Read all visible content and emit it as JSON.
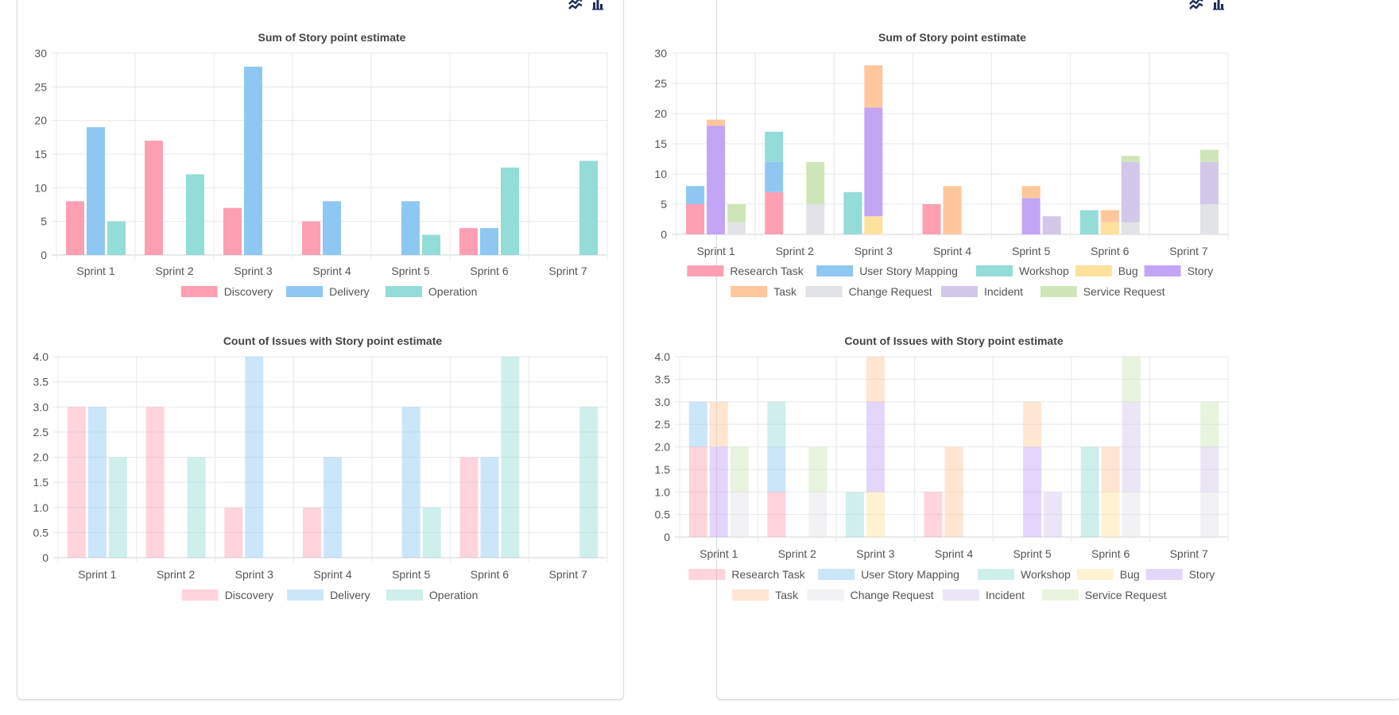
{
  "panels": [
    {
      "toolbar": {
        "icons": [
          "line-chart-icon",
          "bar-chart-icon"
        ]
      },
      "charts": [
        "left_sum",
        "left_count"
      ]
    },
    {
      "toolbar": {
        "icons": [
          "line-chart-icon",
          "bar-chart-icon"
        ]
      },
      "charts": [
        "right_sum",
        "right_count"
      ]
    }
  ],
  "colors": {
    "Discovery": "#ff9fb3",
    "Delivery": "#8ec8f2",
    "Operation": "#94dcd8",
    "Research Task": "#ff9fb3",
    "User Story Mapping": "#8ec8f2",
    "Workshop": "#94dcd8",
    "Bug": "#fde29b",
    "Story": "#c3a5f5",
    "Task": "#fec79b",
    "Change Request": "#e2e3e6",
    "Incident": "#d3c7ea",
    "Service Request": "#cfe6b8"
  },
  "chart_data": [
    {
      "id": "left_sum",
      "type": "bar",
      "stacked": false,
      "title": "Sum of Story point estimate",
      "categories": [
        "Sprint 1",
        "Sprint 2",
        "Sprint 3",
        "Sprint 4",
        "Sprint 5",
        "Sprint 6",
        "Sprint 7"
      ],
      "ylim": [
        0,
        30
      ],
      "yticks": [
        "0",
        "5",
        "10",
        "15",
        "20",
        "25",
        "30"
      ],
      "series": [
        {
          "name": "Discovery",
          "values": [
            8,
            17,
            7,
            5,
            0,
            4,
            0
          ]
        },
        {
          "name": "Delivery",
          "values": [
            19,
            0,
            28,
            8,
            8,
            4,
            0
          ]
        },
        {
          "name": "Operation",
          "values": [
            5,
            12,
            0,
            0,
            3,
            13,
            14
          ]
        }
      ],
      "legend": "bottom",
      "opacity": "strong"
    },
    {
      "id": "left_count",
      "type": "bar",
      "stacked": false,
      "title": "Count of Issues with Story point estimate",
      "categories": [
        "Sprint 1",
        "Sprint 2",
        "Sprint 3",
        "Sprint 4",
        "Sprint 5",
        "Sprint 6",
        "Sprint 7"
      ],
      "ylim": [
        0,
        4
      ],
      "yticks": [
        "0",
        "0.5",
        "1.0",
        "1.5",
        "2.0",
        "2.5",
        "3.0",
        "3.5",
        "4.0"
      ],
      "series": [
        {
          "name": "Discovery",
          "values": [
            3,
            3,
            1,
            1,
            0,
            2,
            0
          ]
        },
        {
          "name": "Delivery",
          "values": [
            3,
            0,
            4,
            2,
            3,
            2,
            0
          ]
        },
        {
          "name": "Operation",
          "values": [
            2,
            2,
            0,
            0,
            1,
            4,
            3
          ]
        }
      ],
      "legend": "bottom",
      "opacity": "light"
    },
    {
      "id": "right_sum",
      "type": "bar",
      "stacked": true,
      "title": "Sum of Story point estimate",
      "categories": [
        "Sprint 1",
        "Sprint 2",
        "Sprint 3",
        "Sprint 4",
        "Sprint 5",
        "Sprint 6",
        "Sprint 7"
      ],
      "ylim": [
        0,
        30
      ],
      "yticks": [
        "0",
        "5",
        "10",
        "15",
        "20",
        "25",
        "30"
      ],
      "series": [
        {
          "name": "Research Task",
          "values": [
            5,
            7,
            0,
            5,
            0,
            0,
            0
          ],
          "stack": "Discovery"
        },
        {
          "name": "User Story Mapping",
          "values": [
            3,
            5,
            0,
            0,
            0,
            0,
            0
          ],
          "stack": "Discovery"
        },
        {
          "name": "Workshop",
          "values": [
            0,
            5,
            7,
            0,
            0,
            4,
            0
          ],
          "stack": "Discovery"
        },
        {
          "name": "Bug",
          "values": [
            0,
            0,
            3,
            0,
            0,
            2,
            0
          ],
          "stack": "Delivery"
        },
        {
          "name": "Story",
          "values": [
            18,
            0,
            18,
            0,
            6,
            0,
            0
          ],
          "stack": "Delivery"
        },
        {
          "name": "Task",
          "values": [
            1,
            0,
            7,
            8,
            2,
            2,
            0
          ],
          "stack": "Delivery"
        },
        {
          "name": "Change Request",
          "values": [
            2,
            5,
            0,
            0,
            0,
            2,
            5
          ],
          "stack": "Operation"
        },
        {
          "name": "Incident",
          "values": [
            0,
            0,
            0,
            0,
            3,
            10,
            7
          ],
          "stack": "Operation"
        },
        {
          "name": "Service Request",
          "values": [
            3,
            7,
            0,
            0,
            0,
            1,
            2
          ],
          "stack": "Operation"
        }
      ],
      "legend": "bottom",
      "opacity": "strong"
    },
    {
      "id": "right_count",
      "type": "bar",
      "stacked": true,
      "title": "Count of Issues with Story point estimate",
      "categories": [
        "Sprint 1",
        "Sprint 2",
        "Sprint 3",
        "Sprint 4",
        "Sprint 5",
        "Sprint 6",
        "Sprint 7"
      ],
      "ylim": [
        0,
        4
      ],
      "yticks": [
        "0",
        "0.5",
        "1.0",
        "1.5",
        "2.0",
        "2.5",
        "3.0",
        "3.5",
        "4.0"
      ],
      "series": [
        {
          "name": "Research Task",
          "values": [
            2,
            1,
            0,
            1,
            0,
            0,
            0
          ],
          "stack": "Discovery"
        },
        {
          "name": "User Story Mapping",
          "values": [
            1,
            1,
            0,
            0,
            0,
            0,
            0
          ],
          "stack": "Discovery"
        },
        {
          "name": "Workshop",
          "values": [
            0,
            1,
            1,
            0,
            0,
            2,
            0
          ],
          "stack": "Discovery"
        },
        {
          "name": "Bug",
          "values": [
            0,
            0,
            1,
            0,
            0,
            1,
            0
          ],
          "stack": "Delivery"
        },
        {
          "name": "Story",
          "values": [
            2,
            0,
            2,
            0,
            2,
            0,
            0
          ],
          "stack": "Delivery"
        },
        {
          "name": "Task",
          "values": [
            1,
            0,
            1,
            2,
            1,
            1,
            0
          ],
          "stack": "Delivery"
        },
        {
          "name": "Change Request",
          "values": [
            1,
            1,
            0,
            0,
            0,
            1,
            1
          ],
          "stack": "Operation"
        },
        {
          "name": "Incident",
          "values": [
            0,
            0,
            0,
            0,
            1,
            2,
            1
          ],
          "stack": "Operation"
        },
        {
          "name": "Service Request",
          "values": [
            1,
            1,
            0,
            0,
            0,
            1,
            1
          ],
          "stack": "Operation"
        }
      ],
      "legend": "bottom",
      "opacity": "light"
    }
  ]
}
